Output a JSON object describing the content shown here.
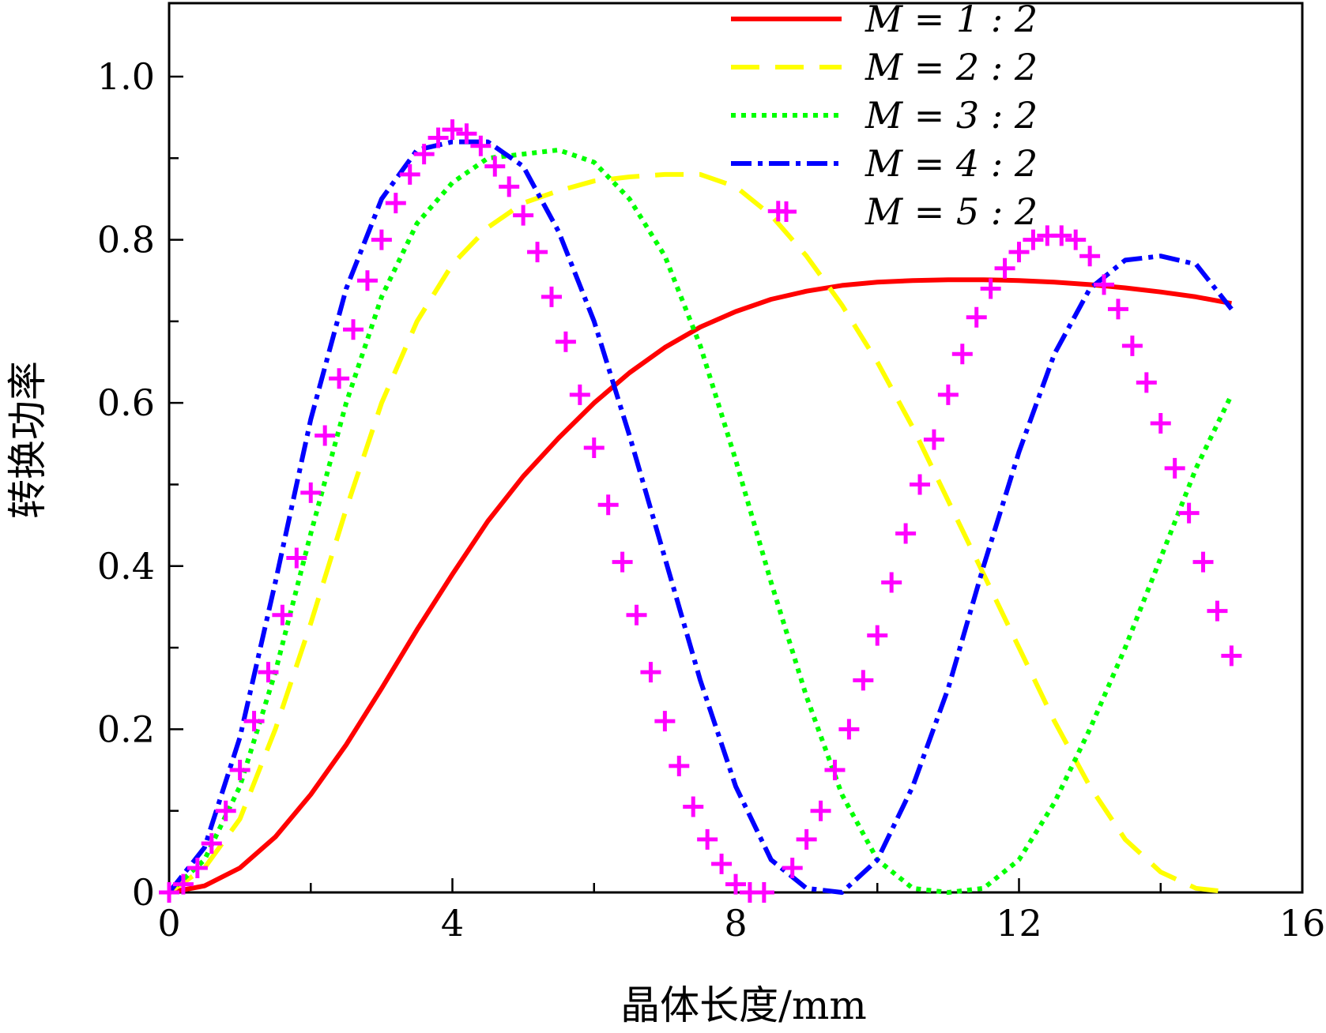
{
  "chart_data": {
    "type": "line",
    "xlabel": "晶体长度/mm",
    "ylabel": "转换功率",
    "xlim": [
      0,
      16
    ],
    "ylim": [
      0,
      1.09
    ],
    "xticks": [
      0,
      4,
      8,
      12,
      16
    ],
    "xtick_labels": [
      "0",
      "4",
      "8",
      "12",
      "16"
    ],
    "yticks": [
      0,
      0.2,
      0.4,
      0.6,
      0.8,
      1.0
    ],
    "ytick_labels": [
      "0",
      "0.2",
      "0.4",
      "0.6",
      "0.8",
      "1.0"
    ],
    "grid": false,
    "legend_position": "top-right",
    "series": [
      {
        "name": "M = 1 : 2",
        "color": "#ff0000",
        "style": "solid",
        "x": [
          0,
          0.5,
          1,
          1.5,
          2,
          2.5,
          3,
          3.5,
          4,
          4.5,
          5,
          5.5,
          6,
          6.5,
          7,
          7.5,
          8,
          8.5,
          9,
          9.5,
          10,
          10.5,
          11,
          11.5,
          12,
          12.5,
          13,
          13.5,
          14,
          14.5,
          15
        ],
        "y": [
          0,
          0.008,
          0.03,
          0.068,
          0.12,
          0.181,
          0.25,
          0.322,
          0.39,
          0.455,
          0.51,
          0.557,
          0.6,
          0.637,
          0.668,
          0.693,
          0.712,
          0.727,
          0.737,
          0.744,
          0.748,
          0.75,
          0.751,
          0.751,
          0.75,
          0.748,
          0.745,
          0.741,
          0.736,
          0.73,
          0.722
        ]
      },
      {
        "name": "M = 2 : 2",
        "color": "#ffff00",
        "style": "dashed",
        "x": [
          0,
          0.5,
          1,
          1.5,
          2,
          2.5,
          3,
          3.5,
          4,
          4.5,
          5,
          5.5,
          6,
          6.5,
          7,
          7.5,
          8,
          8.5,
          9,
          9.5,
          10,
          10.5,
          11,
          11.5,
          12,
          12.5,
          13,
          13.5,
          14,
          14.5,
          15
        ],
        "y": [
          0,
          0.03,
          0.09,
          0.2,
          0.33,
          0.47,
          0.6,
          0.7,
          0.77,
          0.815,
          0.845,
          0.86,
          0.872,
          0.877,
          0.88,
          0.88,
          0.865,
          0.83,
          0.78,
          0.72,
          0.65,
          0.57,
          0.48,
          0.39,
          0.3,
          0.21,
          0.13,
          0.065,
          0.025,
          0.005,
          0
        ]
      },
      {
        "name": "M = 3 : 2",
        "color": "#00ff00",
        "style": "dotted",
        "x": [
          0,
          0.5,
          1,
          1.5,
          2,
          2.5,
          3,
          3.5,
          4,
          4.5,
          5,
          5.5,
          6,
          6.5,
          7,
          7.5,
          8,
          8.5,
          9,
          9.5,
          10,
          10.5,
          11,
          11.5,
          12,
          12.5,
          13,
          13.5,
          14,
          14.5,
          15
        ],
        "y": [
          0,
          0.04,
          0.13,
          0.27,
          0.44,
          0.6,
          0.73,
          0.82,
          0.87,
          0.9,
          0.905,
          0.91,
          0.895,
          0.85,
          0.78,
          0.67,
          0.53,
          0.38,
          0.24,
          0.12,
          0.04,
          0.005,
          0,
          0.005,
          0.04,
          0.11,
          0.2,
          0.3,
          0.41,
          0.52,
          0.61
        ]
      },
      {
        "name": "M = 4 : 2",
        "color": "#0000ff",
        "style": "dashdot",
        "x": [
          0,
          0.5,
          1,
          1.5,
          2,
          2.5,
          3,
          3.5,
          4,
          4.5,
          5,
          5.5,
          6,
          6.5,
          7,
          7.5,
          8,
          8.5,
          9,
          9.5,
          10,
          10.5,
          11,
          11.5,
          12,
          12.5,
          13,
          13.5,
          14,
          14.5,
          15
        ],
        "y": [
          0,
          0.055,
          0.19,
          0.38,
          0.58,
          0.74,
          0.85,
          0.91,
          0.92,
          0.92,
          0.89,
          0.81,
          0.7,
          0.56,
          0.41,
          0.26,
          0.13,
          0.04,
          0.005,
          0,
          0.04,
          0.13,
          0.25,
          0.4,
          0.54,
          0.66,
          0.74,
          0.775,
          0.78,
          0.77,
          0.715
        ]
      },
      {
        "name": "M = 5 : 2",
        "color": "#ff00ff",
        "style": "plus-markers",
        "x": [
          0,
          0.2,
          0.4,
          0.6,
          0.8,
          1.0,
          1.2,
          1.4,
          1.6,
          1.8,
          2.0,
          2.2,
          2.4,
          2.6,
          2.8,
          3.0,
          3.2,
          3.4,
          3.6,
          3.8,
          4.0,
          4.2,
          4.4,
          4.6,
          4.8,
          5.0,
          5.2,
          5.4,
          5.6,
          5.8,
          6.0,
          6.2,
          6.4,
          6.6,
          6.8,
          7.0,
          7.2,
          7.4,
          7.6,
          7.8,
          8.0,
          8.2,
          8.4,
          8.6,
          8.8,
          9.0,
          9.2,
          9.4,
          9.6,
          9.8,
          10.0,
          10.2,
          10.4,
          10.6,
          10.8,
          11.0,
          11.2,
          11.4,
          11.6,
          11.8,
          12.0,
          12.2,
          12.4,
          12.6,
          12.8,
          13.0,
          13.2,
          13.4,
          13.6,
          13.8,
          14.0,
          14.2,
          14.4,
          14.6,
          14.8,
          15.0
        ],
        "y": [
          0,
          0.01,
          0.03,
          0.06,
          0.1,
          0.15,
          0.21,
          0.27,
          0.34,
          0.41,
          0.49,
          0.56,
          0.63,
          0.69,
          0.75,
          0.8,
          0.845,
          0.88,
          0.905,
          0.925,
          0.935,
          0.93,
          0.915,
          0.89,
          0.865,
          0.83,
          0.785,
          0.73,
          0.675,
          0.61,
          0.545,
          0.475,
          0.405,
          0.34,
          0.27,
          0.21,
          0.155,
          0.105,
          0.065,
          0.035,
          0.01,
          0.0,
          0.0,
          0.835,
          0.03,
          0.065,
          0.1,
          0.15,
          0.2,
          0.26,
          0.315,
          0.38,
          0.44,
          0.5,
          0.555,
          0.61,
          0.66,
          0.705,
          0.74,
          0.765,
          0.785,
          0.8,
          0.805,
          0.805,
          0.8,
          0.78,
          0.745,
          0.715,
          0.67,
          0.625,
          0.575,
          0.52,
          0.465,
          0.405,
          0.345,
          0.29
        ]
      }
    ]
  }
}
